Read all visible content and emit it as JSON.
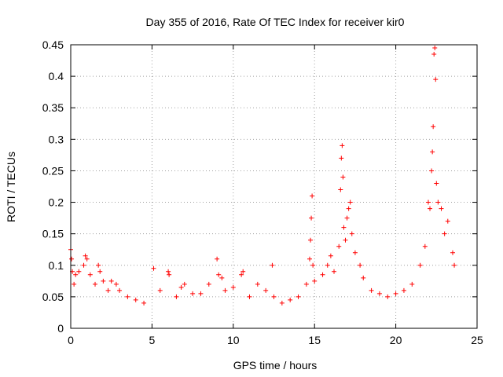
{
  "chart_data": {
    "type": "scatter",
    "title": "Day 355 of 2016, Rate Of TEC Index for receiver kir0",
    "xlabel": "GPS time / hours",
    "ylabel": "ROTI / TECUs",
    "xlim": [
      0,
      25
    ],
    "ylim": [
      0,
      0.45
    ],
    "x_ticks": [
      0,
      5,
      10,
      15,
      20,
      25
    ],
    "y_ticks": [
      0,
      0.05,
      0.1,
      0.15,
      0.2,
      0.25,
      0.3,
      0.35,
      0.4,
      0.45
    ],
    "x_tick_labels": [
      "0",
      "5",
      "10",
      "15",
      "20",
      "25"
    ],
    "y_tick_labels": [
      "0",
      "0.05",
      "0.1",
      "0.15",
      "0.2",
      "0.25",
      "0.3",
      "0.35",
      "0.4",
      "0.45"
    ],
    "grid": true,
    "marker": "+",
    "marker_color": "#ff0000",
    "series": [
      {
        "name": "ROTI",
        "points": [
          [
            0.0,
            0.125
          ],
          [
            0.05,
            0.11
          ],
          [
            0.1,
            0.09
          ],
          [
            0.2,
            0.07
          ],
          [
            0.3,
            0.085
          ],
          [
            0.5,
            0.09
          ],
          [
            0.8,
            0.1
          ],
          [
            0.9,
            0.115
          ],
          [
            1.0,
            0.11
          ],
          [
            1.2,
            0.085
          ],
          [
            1.5,
            0.07
          ],
          [
            1.7,
            0.1
          ],
          [
            1.8,
            0.09
          ],
          [
            2.0,
            0.075
          ],
          [
            2.3,
            0.06
          ],
          [
            2.5,
            0.075
          ],
          [
            2.8,
            0.07
          ],
          [
            3.0,
            0.06
          ],
          [
            3.5,
            0.05
          ],
          [
            4.0,
            0.045
          ],
          [
            4.5,
            0.04
          ],
          [
            5.1,
            0.095
          ],
          [
            5.5,
            0.06
          ],
          [
            6.0,
            0.09
          ],
          [
            6.05,
            0.085
          ],
          [
            6.5,
            0.05
          ],
          [
            6.8,
            0.065
          ],
          [
            7.0,
            0.07
          ],
          [
            7.5,
            0.055
          ],
          [
            8.0,
            0.055
          ],
          [
            8.5,
            0.07
          ],
          [
            9.0,
            0.11
          ],
          [
            9.1,
            0.085
          ],
          [
            9.3,
            0.08
          ],
          [
            9.5,
            0.06
          ],
          [
            10.0,
            0.065
          ],
          [
            10.5,
            0.085
          ],
          [
            10.6,
            0.09
          ],
          [
            11.0,
            0.05
          ],
          [
            11.5,
            0.07
          ],
          [
            12.0,
            0.06
          ],
          [
            12.4,
            0.1
          ],
          [
            12.5,
            0.05
          ],
          [
            13.0,
            0.04
          ],
          [
            13.5,
            0.045
          ],
          [
            14.0,
            0.05
          ],
          [
            14.5,
            0.07
          ],
          [
            14.7,
            0.11
          ],
          [
            14.75,
            0.14
          ],
          [
            14.8,
            0.175
          ],
          [
            14.85,
            0.21
          ],
          [
            14.9,
            0.1
          ],
          [
            15.0,
            0.075
          ],
          [
            15.5,
            0.085
          ],
          [
            15.8,
            0.1
          ],
          [
            16.0,
            0.115
          ],
          [
            16.2,
            0.09
          ],
          [
            16.5,
            0.13
          ],
          [
            16.6,
            0.22
          ],
          [
            16.65,
            0.27
          ],
          [
            16.7,
            0.29
          ],
          [
            16.75,
            0.24
          ],
          [
            16.8,
            0.16
          ],
          [
            16.9,
            0.14
          ],
          [
            17.0,
            0.175
          ],
          [
            17.1,
            0.19
          ],
          [
            17.2,
            0.2
          ],
          [
            17.3,
            0.15
          ],
          [
            17.5,
            0.12
          ],
          [
            17.8,
            0.1
          ],
          [
            18.0,
            0.08
          ],
          [
            18.5,
            0.06
          ],
          [
            19.0,
            0.055
          ],
          [
            19.5,
            0.05
          ],
          [
            20.0,
            0.055
          ],
          [
            20.5,
            0.06
          ],
          [
            21.0,
            0.07
          ],
          [
            21.5,
            0.1
          ],
          [
            21.8,
            0.13
          ],
          [
            22.0,
            0.2
          ],
          [
            22.1,
            0.19
          ],
          [
            22.2,
            0.25
          ],
          [
            22.25,
            0.28
          ],
          [
            22.3,
            0.32
          ],
          [
            22.35,
            0.435
          ],
          [
            22.4,
            0.445
          ],
          [
            22.45,
            0.395
          ],
          [
            22.5,
            0.23
          ],
          [
            22.6,
            0.2
          ],
          [
            22.8,
            0.19
          ],
          [
            23.0,
            0.15
          ],
          [
            23.2,
            0.17
          ],
          [
            23.5,
            0.12
          ],
          [
            23.6,
            0.1
          ]
        ]
      }
    ]
  }
}
